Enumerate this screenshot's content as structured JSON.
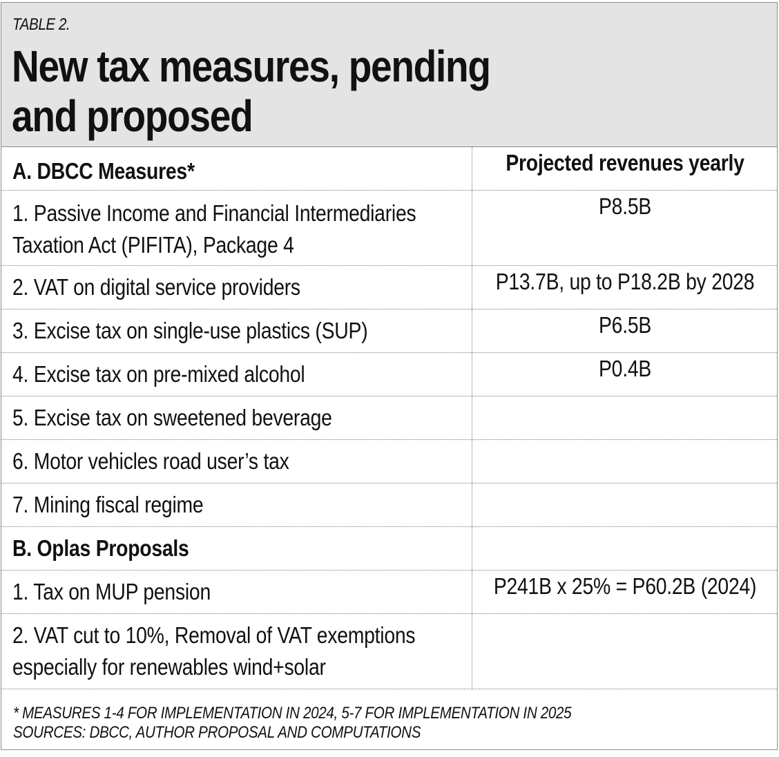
{
  "header": {
    "label": "TABLE 2.",
    "title_line1": "New tax measures, pending",
    "title_line2": "and proposed"
  },
  "table": {
    "section_a": {
      "heading": "A. DBCC Measures*",
      "column_heading": "Projected revenues yearly"
    },
    "rows_a": [
      {
        "line1": "1. Passive Income and Financial Intermediaries",
        "line2": "Taxation Act (PIFITA), Package 4",
        "revenue": "P8.5B"
      },
      {
        "line1": "2. VAT on digital service providers",
        "revenue": "P13.7B, up to P18.2B by 2028"
      },
      {
        "line1": "3. Excise tax on single-use plastics (SUP)",
        "revenue": "P6.5B"
      },
      {
        "line1": "4. Excise tax on pre-mixed alcohol",
        "revenue": "P0.4B"
      },
      {
        "line1": "5. Excise tax on sweetened beverage",
        "revenue": ""
      },
      {
        "line1": "6. Motor vehicles road user’s tax",
        "revenue": ""
      },
      {
        "line1": "7. Mining fiscal regime",
        "revenue": ""
      }
    ],
    "section_b": {
      "heading": "B. Oplas Proposals"
    },
    "rows_b": [
      {
        "line1": "1. Tax on MUP pension",
        "revenue": "P241B x 25% = P60.2B (2024)"
      },
      {
        "line1": "2. VAT cut to 10%, Removal of VAT exemptions",
        "line2": "especially for renewables wind+solar",
        "revenue": ""
      }
    ]
  },
  "footer": {
    "note": "* MEASURES 1-4 FOR IMPLEMENTATION IN 2024, 5-7 FOR IMPLEMENTATION IN 2025",
    "sources": "SOURCES: DBCC, AUTHOR PROPOSAL AND COMPUTATIONS"
  }
}
